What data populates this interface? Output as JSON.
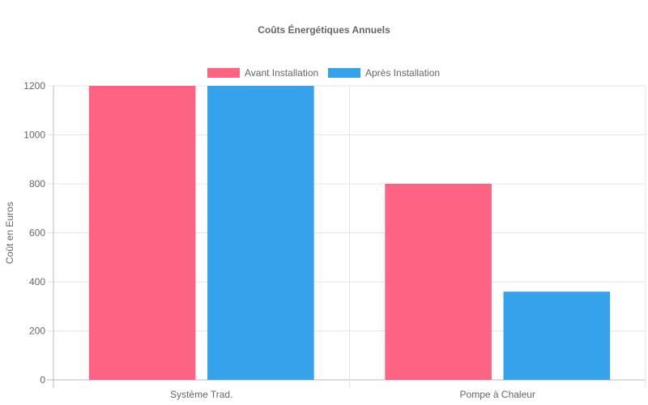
{
  "chart_data": {
    "type": "bar",
    "title": "Coûts Énergétiques Annuels",
    "categories": [
      "Système Trad.",
      "Pompe à Chaleur"
    ],
    "series": [
      {
        "name": "Avant Installation",
        "values": [
          1200,
          800
        ],
        "color": "#ff6384"
      },
      {
        "name": "Après Installation",
        "values": [
          1200,
          360
        ],
        "color": "#36a2eb"
      }
    ],
    "xlabel": "",
    "ylabel": "Coût en Euros",
    "ylim": [
      0,
      1200
    ],
    "yticks": [
      0,
      200,
      400,
      600,
      800,
      1000,
      1200
    ],
    "grid": true,
    "legend_position": "top"
  }
}
